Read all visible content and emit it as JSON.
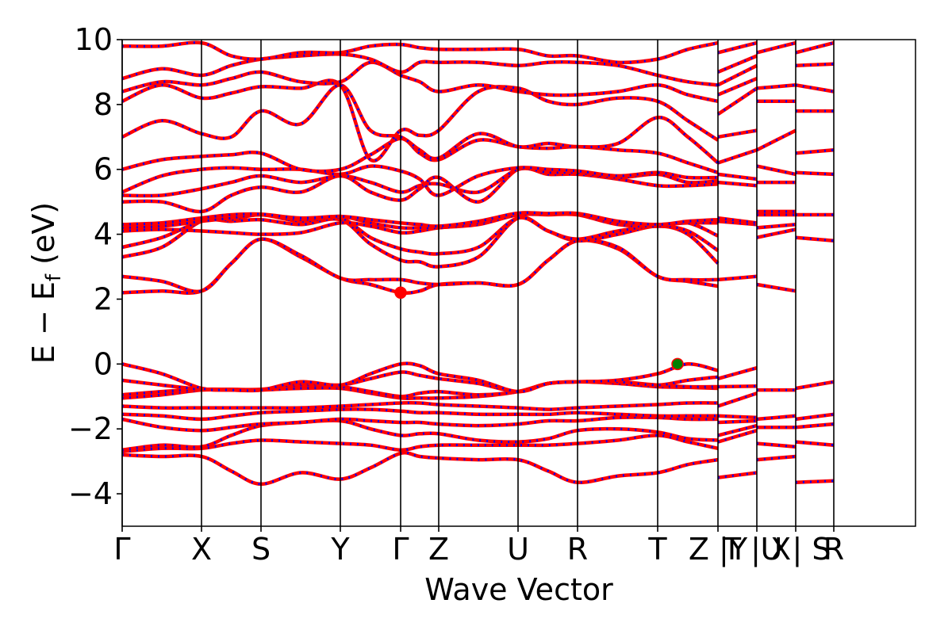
{
  "chart_data": {
    "type": "line",
    "title": "",
    "xlabel": "Wave Vector",
    "ylabel_main": "E − E",
    "ylabel_sub": "f",
    "ylabel_unit": " (eV)",
    "ylim": [
      -5,
      10
    ],
    "yticks": [
      -4,
      -2,
      0,
      2,
      4,
      6,
      8,
      10
    ],
    "ytick_labels": [
      "−4",
      "−2",
      "0",
      "2",
      "4",
      "6",
      "8",
      "10"
    ],
    "xlim": [
      0,
      10
    ],
    "kpath": [
      {
        "label": "Γ",
        "x": 0.0
      },
      {
        "label": "X",
        "x": 1.0
      },
      {
        "label": "S",
        "x": 1.75
      },
      {
        "label": "Y",
        "x": 2.75
      },
      {
        "label": "Γ",
        "x": 3.51
      },
      {
        "label": "Z",
        "x": 3.99
      },
      {
        "label": "U",
        "x": 4.99
      },
      {
        "label": "R",
        "x": 5.74
      },
      {
        "label": "T",
        "x": 6.75
      },
      {
        "label": "Z |Y",
        "x": 7.51
      },
      {
        "label": "T | X",
        "x": 8.0
      },
      {
        "label": "U | S",
        "x": 8.49
      },
      {
        "label": "R",
        "x": 8.97
      }
    ],
    "grid": false,
    "legend": "none",
    "markers": [
      {
        "x": 3.51,
        "y": 2.2,
        "color": "#ff0000"
      },
      {
        "x": 7.0,
        "y": 0.0,
        "color": "#008000"
      }
    ],
    "segments": [
      {
        "x": [
          0.0,
          0.5,
          1.0,
          1.375,
          1.75,
          2.25,
          2.75,
          3.13,
          3.51,
          3.75,
          3.99,
          4.49,
          4.99,
          5.37,
          5.74,
          6.25,
          6.75,
          7.13,
          7.51
        ],
        "bands": [
          [
            -2.8,
            -2.85,
            -2.85,
            -3.3,
            -3.7,
            -3.35,
            -3.55,
            -3.2,
            -2.75,
            -2.85,
            -2.9,
            -2.95,
            -2.95,
            -3.3,
            -3.65,
            -3.45,
            -3.35,
            -3.1,
            -2.95
          ],
          [
            -2.7,
            -2.6,
            -2.6,
            -2.45,
            -2.35,
            -2.4,
            -2.45,
            -2.5,
            -2.65,
            -2.55,
            -2.5,
            -2.5,
            -2.5,
            -2.5,
            -2.45,
            -2.35,
            -2.2,
            -2.4,
            -2.6
          ],
          [
            -2.65,
            -2.5,
            -2.55,
            -2.2,
            -1.9,
            -1.8,
            -1.75,
            -2.0,
            -2.2,
            -2.15,
            -2.15,
            -2.35,
            -2.4,
            -2.3,
            -2.05,
            -2.0,
            -2.1,
            -2.3,
            -2.35
          ],
          [
            -1.7,
            -1.95,
            -2.05,
            -1.95,
            -1.85,
            -1.8,
            -1.7,
            -1.75,
            -1.8,
            -1.8,
            -1.85,
            -1.9,
            -1.85,
            -1.75,
            -1.75,
            -1.65,
            -1.65,
            -1.7,
            -1.7
          ],
          [
            -1.55,
            -1.6,
            -1.7,
            -1.6,
            -1.5,
            -1.45,
            -1.4,
            -1.4,
            -1.45,
            -1.5,
            -1.5,
            -1.55,
            -1.55,
            -1.55,
            -1.5,
            -1.55,
            -1.6,
            -1.6,
            -1.6
          ],
          [
            -1.3,
            -1.35,
            -1.35,
            -1.35,
            -1.35,
            -1.35,
            -1.3,
            -1.25,
            -1.2,
            -1.2,
            -1.25,
            -1.3,
            -1.35,
            -1.4,
            -1.35,
            -1.3,
            -1.25,
            -1.2,
            -1.2
          ],
          [
            -1.05,
            -0.95,
            -0.8,
            -0.8,
            -0.8,
            -0.75,
            -0.75,
            -0.9,
            -1.05,
            -1.05,
            -1.05,
            -1.0,
            -0.85,
            -0.6,
            -0.55,
            -0.6,
            -0.7,
            -0.72,
            -0.75
          ],
          [
            -0.95,
            -0.85,
            -0.78,
            -0.78,
            -0.78,
            -0.65,
            -0.7,
            -0.85,
            -1.0,
            -0.9,
            -0.85,
            -0.95,
            -0.85,
            -0.6,
            -0.55,
            -0.55,
            -0.65,
            -0.7,
            -0.7
          ],
          [
            -0.5,
            -0.65,
            -0.78,
            -0.8,
            -0.8,
            -0.6,
            -0.65,
            -0.45,
            -0.25,
            -0.35,
            -0.45,
            -0.6,
            -0.85,
            -0.6,
            -0.55,
            -0.55,
            -0.65,
            -0.5,
            -0.4
          ],
          [
            0.0,
            -0.3,
            -0.75,
            -0.8,
            -0.8,
            -0.55,
            -0.65,
            -0.3,
            0.0,
            -0.05,
            -0.3,
            -0.5,
            -0.85,
            -0.6,
            -0.55,
            -0.5,
            -0.3,
            0.0,
            -0.2
          ],
          [
            2.2,
            2.25,
            2.25,
            3.1,
            3.85,
            3.3,
            2.65,
            2.45,
            2.2,
            2.25,
            2.45,
            2.5,
            2.45,
            3.2,
            3.8,
            3.55,
            2.7,
            2.55,
            2.4
          ],
          [
            2.7,
            2.55,
            2.25,
            3.1,
            3.85,
            3.35,
            2.65,
            2.6,
            2.6,
            2.5,
            2.45,
            2.5,
            2.45,
            3.2,
            3.8,
            3.6,
            2.7,
            2.6,
            2.6
          ],
          [
            3.3,
            3.6,
            4.4,
            4.4,
            4.45,
            4.3,
            4.45,
            3.7,
            3.2,
            3.15,
            3.0,
            3.3,
            4.5,
            4.1,
            3.8,
            4.0,
            4.25,
            4.0,
            3.1
          ],
          [
            3.6,
            3.9,
            4.4,
            4.45,
            4.6,
            4.4,
            4.5,
            3.9,
            3.55,
            3.45,
            3.4,
            3.6,
            4.5,
            4.1,
            3.85,
            4.1,
            4.25,
            4.1,
            3.5
          ],
          [
            4.1,
            4.15,
            4.1,
            4.05,
            4.0,
            4.05,
            4.35,
            4.25,
            4.05,
            4.1,
            4.2,
            4.3,
            4.6,
            4.6,
            4.6,
            4.3,
            4.25,
            4.35,
            3.95
          ],
          [
            4.2,
            4.25,
            4.4,
            4.5,
            4.6,
            4.45,
            4.55,
            4.35,
            4.2,
            4.2,
            4.2,
            4.35,
            4.65,
            4.62,
            4.62,
            4.35,
            4.3,
            4.35,
            4.35
          ],
          [
            4.3,
            4.35,
            4.5,
            4.6,
            4.62,
            4.5,
            4.55,
            4.45,
            4.35,
            4.3,
            4.25,
            4.4,
            4.65,
            4.64,
            4.64,
            4.4,
            4.3,
            4.4,
            4.45
          ],
          [
            5.0,
            5.0,
            4.7,
            5.2,
            5.45,
            5.3,
            5.8,
            5.3,
            5.05,
            5.4,
            5.75,
            5.0,
            6.0,
            5.85,
            5.85,
            5.7,
            5.5,
            5.5,
            5.55
          ],
          [
            5.2,
            5.2,
            5.4,
            5.6,
            5.8,
            5.6,
            5.8,
            5.6,
            5.3,
            5.5,
            5.55,
            5.3,
            6.0,
            5.9,
            5.9,
            5.75,
            5.85,
            5.6,
            5.65
          ],
          [
            5.3,
            5.8,
            6.0,
            6.05,
            6.0,
            6.0,
            5.85,
            6.1,
            5.95,
            5.7,
            5.2,
            5.8,
            6.05,
            6.0,
            5.95,
            5.8,
            5.9,
            5.75,
            5.75
          ],
          [
            6.0,
            6.3,
            6.4,
            6.45,
            6.5,
            6.0,
            6.0,
            6.45,
            6.95,
            6.5,
            6.3,
            6.9,
            6.7,
            6.65,
            6.7,
            6.6,
            6.5,
            6.2,
            5.9
          ],
          [
            7.0,
            7.5,
            7.1,
            7.0,
            7.8,
            7.4,
            8.6,
            7.2,
            7.0,
            6.6,
            6.35,
            7.1,
            6.7,
            6.8,
            6.7,
            6.8,
            7.6,
            7.0,
            6.2
          ],
          [
            8.1,
            8.6,
            8.2,
            8.35,
            8.55,
            8.5,
            8.6,
            6.3,
            7.2,
            7.05,
            7.2,
            8.4,
            8.5,
            8.1,
            8.0,
            8.2,
            8.1,
            7.5,
            6.9
          ],
          [
            8.4,
            8.7,
            8.6,
            8.8,
            9.0,
            8.7,
            8.7,
            9.3,
            8.9,
            8.7,
            8.4,
            8.6,
            8.4,
            8.3,
            8.3,
            8.4,
            8.6,
            8.3,
            8.1
          ],
          [
            8.8,
            9.1,
            8.9,
            9.2,
            9.4,
            9.5,
            9.55,
            9.4,
            9.0,
            9.3,
            9.3,
            9.3,
            9.2,
            9.3,
            9.3,
            9.2,
            8.9,
            8.7,
            8.6
          ],
          [
            9.8,
            9.8,
            9.9,
            9.5,
            9.4,
            9.6,
            9.6,
            9.8,
            9.85,
            9.75,
            9.7,
            9.7,
            9.7,
            9.5,
            9.5,
            9.3,
            9.4,
            9.7,
            9.9
          ]
        ]
      },
      {
        "x": [
          7.51,
          8.0
        ],
        "bands": [
          [
            -3.5,
            -3.35
          ],
          [
            -2.4,
            -2.05
          ],
          [
            -2.2,
            -1.9
          ],
          [
            -1.8,
            -1.75
          ],
          [
            -1.6,
            -1.65
          ],
          [
            -1.3,
            -0.9
          ],
          [
            -0.7,
            -0.68
          ],
          [
            -0.45,
            -0.12
          ],
          [
            2.6,
            2.7
          ],
          [
            4.4,
            4.3
          ],
          [
            4.5,
            4.35
          ],
          [
            5.6,
            5.5
          ],
          [
            5.85,
            5.7
          ],
          [
            6.2,
            6.6
          ],
          [
            7.0,
            7.2
          ],
          [
            7.7,
            8.5
          ],
          [
            8.3,
            8.8
          ],
          [
            8.6,
            9.2
          ],
          [
            9.0,
            9.5
          ],
          [
            9.6,
            9.9
          ]
        ]
      },
      {
        "x": [
          8.0,
          8.49
        ],
        "bands": [
          [
            -2.95,
            -2.85
          ],
          [
            -2.45,
            -2.55
          ],
          [
            -1.95,
            -1.95
          ],
          [
            -1.7,
            -1.6
          ],
          [
            -0.8,
            -0.8
          ],
          [
            2.45,
            2.25
          ],
          [
            3.9,
            4.15
          ],
          [
            4.2,
            4.3
          ],
          [
            4.6,
            4.6
          ],
          [
            4.7,
            4.7
          ],
          [
            5.6,
            5.6
          ],
          [
            6.1,
            5.85
          ],
          [
            6.6,
            7.2
          ],
          [
            8.1,
            8.1
          ],
          [
            8.5,
            8.6
          ],
          [
            9.6,
            9.9
          ]
        ]
      },
      {
        "x": [
          8.49,
          8.97
        ],
        "bands": [
          [
            -3.65,
            -3.6
          ],
          [
            -2.4,
            -2.5
          ],
          [
            -1.95,
            -1.85
          ],
          [
            -1.7,
            -1.55
          ],
          [
            -0.75,
            -0.55
          ],
          [
            3.9,
            3.8
          ],
          [
            4.6,
            4.6
          ],
          [
            5.9,
            5.85
          ],
          [
            6.5,
            6.6
          ],
          [
            7.8,
            7.8
          ],
          [
            8.6,
            8.4
          ],
          [
            9.2,
            9.25
          ],
          [
            9.6,
            9.9
          ]
        ]
      }
    ]
  },
  "colors": {
    "band_primary": "#ff0000",
    "band_secondary": "#0000ff",
    "axis": "#000000",
    "vbm_marker": "#008000",
    "cbm_marker": "#ff0000"
  }
}
